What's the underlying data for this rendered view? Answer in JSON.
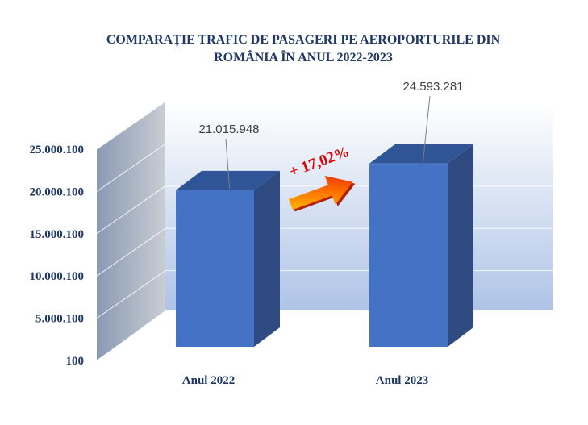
{
  "chart_data": {
    "type": "bar",
    "title": "COMPARAȚIE TRAFIC DE PASAGERI PE AEROPORTURILE DIN ROMÂNIA ÎN ANUL 2022-2023",
    "title_lines": [
      "COMPARAȚIE TRAFIC DE PASAGERI PE AEROPORTURILE DIN",
      "ROMÂNIA ÎN ANUL 2022-2023"
    ],
    "categories": [
      "Anul 2022",
      "Anul 2023"
    ],
    "values": [
      21015948,
      24593281
    ],
    "value_labels": [
      "21.015.948",
      "24.593.281"
    ],
    "y_ticks": [
      100,
      5000100,
      10000100,
      15000100,
      20000100,
      25000100
    ],
    "y_tick_labels": [
      "100",
      "5.000.100",
      "10.000.100",
      "15.000.100",
      "20.000.100",
      "25.000.100"
    ],
    "ylim": [
      100,
      25000100
    ],
    "annotation": "+ 17,02%",
    "grid": true,
    "legend": "none",
    "colors": {
      "bar_front": "#4472c4",
      "bar_side": "#2e4a80",
      "bar_top": "#2f5597",
      "title": "#1f3864",
      "annotation": "#e00000"
    }
  }
}
